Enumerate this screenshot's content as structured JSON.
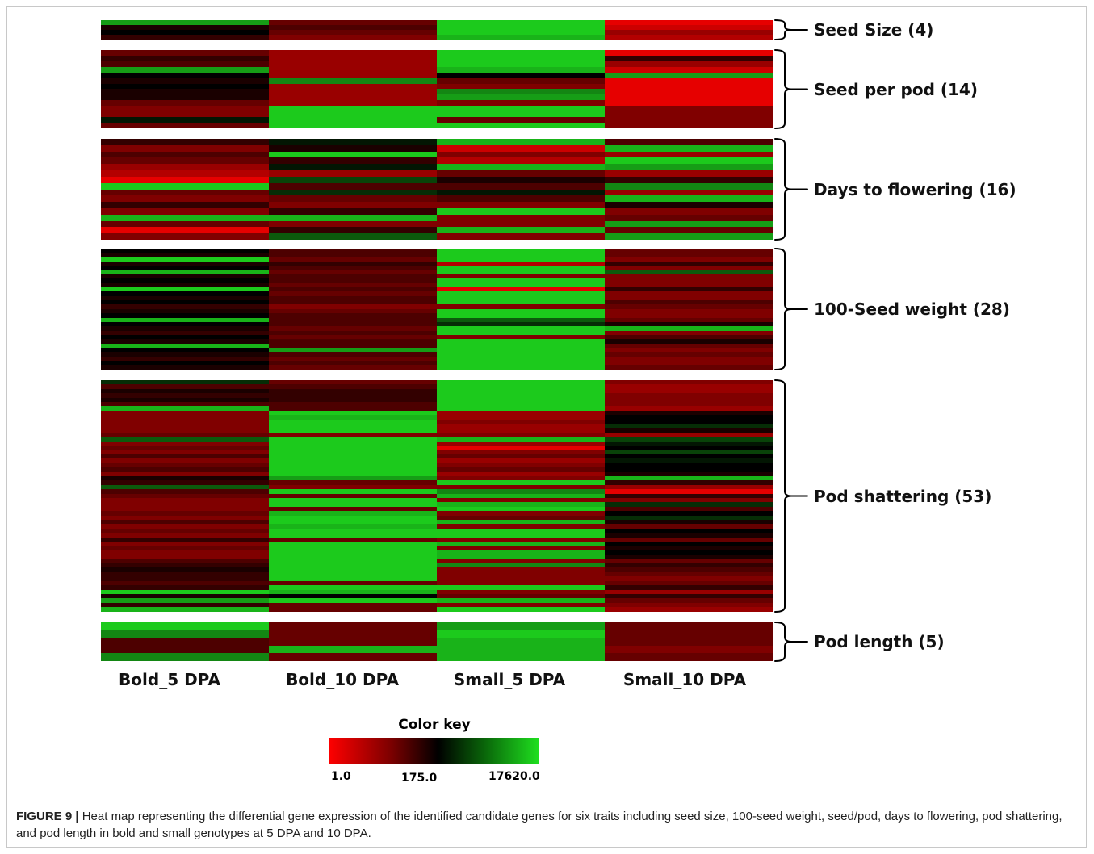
{
  "columns": [
    "Bold_5 DPA",
    "Bold_10 DPA",
    "Small_5 DPA",
    "Small_10 DPA"
  ],
  "color_scale": {
    "low": "#ff0000",
    "mid": "#000000",
    "high": "#1fe01f"
  },
  "color_key": {
    "title": "Color key",
    "min": "1.0",
    "mid": "175.0",
    "max": "17620.0"
  },
  "caption": {
    "figure": "FIGURE 9 |",
    "text": " Heat map representing the differential gene expression of the identified candidate genes for six traits including seed size, 100-seed weight, seed/pod, days to flowering, pod shattering, and pod length in bold and small genotypes at 5 DPA and 10 DPA."
  },
  "chart_data": {
    "type": "heatmap",
    "value_scale": "color from red (low) through black to green (high)",
    "columns": [
      "Bold_5 DPA",
      "Bold_10 DPA",
      "Small_5 DPA",
      "Small_10 DPA"
    ],
    "traits": [
      {
        "label": "Seed Size (4)",
        "rows": [
          [
            0.85,
            0.3,
            0.95,
            0.05
          ],
          [
            0.45,
            0.35,
            0.95,
            0.1
          ],
          [
            0.5,
            0.3,
            0.95,
            0.2
          ],
          [
            0.4,
            0.25,
            0.9,
            0.15
          ]
        ]
      },
      {
        "label": "Seed per pod (14)",
        "rows": [
          [
            0.3,
            0.2,
            0.95,
            0.05
          ],
          [
            0.4,
            0.2,
            0.95,
            0.4
          ],
          [
            0.35,
            0.2,
            0.95,
            0.2
          ],
          [
            0.85,
            0.2,
            0.9,
            0.1
          ],
          [
            0.5,
            0.2,
            0.5,
            0.85
          ],
          [
            0.45,
            0.8,
            0.3,
            0.05
          ],
          [
            0.5,
            0.2,
            0.25,
            0.05
          ],
          [
            0.45,
            0.2,
            0.8,
            0.05
          ],
          [
            0.45,
            0.2,
            0.85,
            0.05
          ],
          [
            0.3,
            0.2,
            0.25,
            0.05
          ],
          [
            0.25,
            0.95,
            0.95,
            0.25
          ],
          [
            0.25,
            0.95,
            0.95,
            0.25
          ],
          [
            0.55,
            0.95,
            0.3,
            0.25
          ],
          [
            0.3,
            0.95,
            0.95,
            0.25
          ]
        ]
      },
      {
        "label": "Days to flowering (16)",
        "rows": [
          [
            0.4,
            0.55,
            0.9,
            0.35
          ],
          [
            0.25,
            0.45,
            0.1,
            0.9
          ],
          [
            0.35,
            0.95,
            0.25,
            0.2
          ],
          [
            0.3,
            0.4,
            0.15,
            0.95
          ],
          [
            0.2,
            0.55,
            0.9,
            0.85
          ],
          [
            0.15,
            0.2,
            0.3,
            0.2
          ],
          [
            0.05,
            0.65,
            0.45,
            0.4
          ],
          [
            0.95,
            0.35,
            0.35,
            0.8
          ],
          [
            0.3,
            0.6,
            0.55,
            0.2
          ],
          [
            0.25,
            0.3,
            0.35,
            0.9
          ],
          [
            0.4,
            0.25,
            0.25,
            0.45
          ],
          [
            0.25,
            0.4,
            0.95,
            0.25
          ],
          [
            0.9,
            0.9,
            0.25,
            0.3
          ],
          [
            0.3,
            0.25,
            0.25,
            0.85
          ],
          [
            0.05,
            0.4,
            0.9,
            0.3
          ],
          [
            0.25,
            0.7,
            0.25,
            0.85
          ]
        ]
      },
      {
        "label": "100-Seed weight (28)",
        "rows": [
          [
            0.5,
            0.35,
            0.95,
            0.3
          ],
          [
            0.45,
            0.35,
            0.95,
            0.3
          ],
          [
            0.95,
            0.3,
            0.95,
            0.25
          ],
          [
            0.45,
            0.4,
            0.15,
            0.4
          ],
          [
            0.5,
            0.35,
            0.95,
            0.25
          ],
          [
            0.9,
            0.3,
            0.95,
            0.7
          ],
          [
            0.45,
            0.35,
            0.25,
            0.25
          ],
          [
            0.5,
            0.35,
            0.95,
            0.25
          ],
          [
            0.45,
            0.3,
            0.95,
            0.25
          ],
          [
            0.95,
            0.35,
            0.05,
            0.4
          ],
          [
            0.5,
            0.3,
            0.95,
            0.25
          ],
          [
            0.45,
            0.35,
            0.95,
            0.25
          ],
          [
            0.5,
            0.35,
            0.95,
            0.35
          ],
          [
            0.4,
            0.25,
            0.25,
            0.3
          ],
          [
            0.45,
            0.3,
            0.95,
            0.25
          ],
          [
            0.5,
            0.35,
            0.95,
            0.25
          ],
          [
            0.9,
            0.35,
            0.7,
            0.3
          ],
          [
            0.5,
            0.35,
            0.6,
            0.45
          ],
          [
            0.45,
            0.3,
            0.95,
            0.9
          ],
          [
            0.4,
            0.35,
            0.95,
            0.25
          ],
          [
            0.5,
            0.3,
            0.25,
            0.35
          ],
          [
            0.45,
            0.35,
            0.95,
            0.45
          ],
          [
            0.9,
            0.35,
            0.95,
            0.3
          ],
          [
            0.5,
            0.85,
            0.95,
            0.25
          ],
          [
            0.45,
            0.35,
            0.95,
            0.3
          ],
          [
            0.4,
            0.3,
            0.95,
            0.25
          ],
          [
            0.5,
            0.35,
            0.95,
            0.25
          ],
          [
            0.45,
            0.3,
            0.95,
            0.3
          ]
        ]
      },
      {
        "label": "Pod shattering (53)",
        "rows": [
          [
            0.6,
            0.3,
            0.95,
            0.25
          ],
          [
            0.35,
            0.35,
            0.95,
            0.2
          ],
          [
            0.45,
            0.4,
            0.95,
            0.2
          ],
          [
            0.4,
            0.4,
            0.95,
            0.25
          ],
          [
            0.45,
            0.4,
            0.95,
            0.25
          ],
          [
            0.35,
            0.35,
            0.95,
            0.25
          ],
          [
            0.9,
            0.35,
            0.95,
            0.2
          ],
          [
            0.25,
            0.95,
            0.2,
            0.45
          ],
          [
            0.25,
            0.9,
            0.2,
            0.5
          ],
          [
            0.25,
            0.95,
            0.25,
            0.5
          ],
          [
            0.25,
            0.95,
            0.2,
            0.6
          ],
          [
            0.25,
            0.95,
            0.2,
            0.45
          ],
          [
            0.3,
            0.25,
            0.25,
            0.2
          ],
          [
            0.7,
            0.95,
            0.9,
            0.65
          ],
          [
            0.25,
            0.95,
            0.2,
            0.55
          ],
          [
            0.3,
            0.95,
            0.05,
            0.5
          ],
          [
            0.25,
            0.95,
            0.25,
            0.65
          ],
          [
            0.35,
            0.95,
            0.3,
            0.5
          ],
          [
            0.25,
            0.95,
            0.2,
            0.55
          ],
          [
            0.3,
            0.95,
            0.25,
            0.5
          ],
          [
            0.35,
            0.95,
            0.3,
            0.5
          ],
          [
            0.25,
            0.95,
            0.2,
            0.45
          ],
          [
            0.45,
            0.85,
            0.25,
            0.9
          ],
          [
            0.4,
            0.3,
            0.95,
            0.4
          ],
          [
            0.7,
            0.25,
            0.25,
            0.2
          ],
          [
            0.35,
            0.95,
            0.8,
            0.05
          ],
          [
            0.3,
            0.3,
            0.9,
            0.4
          ],
          [
            0.25,
            0.95,
            0.25,
            0.25
          ],
          [
            0.25,
            0.95,
            0.9,
            0.6
          ],
          [
            0.25,
            0.3,
            0.95,
            0.35
          ],
          [
            0.3,
            0.9,
            0.25,
            0.5
          ],
          [
            0.25,
            0.95,
            0.3,
            0.6
          ],
          [
            0.35,
            0.95,
            0.9,
            0.45
          ],
          [
            0.25,
            0.9,
            0.25,
            0.3
          ],
          [
            0.3,
            0.95,
            0.95,
            0.5
          ],
          [
            0.25,
            0.95,
            0.95,
            0.45
          ],
          [
            0.4,
            0.3,
            0.25,
            0.3
          ],
          [
            0.25,
            0.95,
            0.9,
            0.5
          ],
          [
            0.3,
            0.95,
            0.25,
            0.45
          ],
          [
            0.25,
            0.95,
            0.9,
            0.5
          ],
          [
            0.25,
            0.95,
            0.9,
            0.45
          ],
          [
            0.35,
            0.95,
            0.25,
            0.3
          ],
          [
            0.4,
            0.95,
            0.8,
            0.4
          ],
          [
            0.45,
            0.95,
            0.25,
            0.35
          ],
          [
            0.4,
            0.95,
            0.25,
            0.3
          ],
          [
            0.4,
            0.95,
            0.25,
            0.25
          ],
          [
            0.35,
            0.3,
            0.25,
            0.3
          ],
          [
            0.4,
            0.95,
            0.95,
            0.4
          ],
          [
            0.95,
            0.9,
            0.25,
            0.2
          ],
          [
            0.45,
            0.5,
            0.3,
            0.4
          ],
          [
            0.85,
            0.95,
            0.9,
            0.3
          ],
          [
            0.4,
            0.3,
            0.25,
            0.25
          ],
          [
            0.9,
            0.3,
            0.95,
            0.2
          ]
        ]
      },
      {
        "label": "Pod length (5)",
        "rows": [
          [
            0.95,
            0.3,
            0.85,
            0.3
          ],
          [
            0.8,
            0.3,
            0.95,
            0.3
          ],
          [
            0.35,
            0.3,
            0.9,
            0.3
          ],
          [
            0.35,
            0.9,
            0.9,
            0.25
          ],
          [
            0.8,
            0.3,
            0.9,
            0.3
          ]
        ]
      }
    ]
  }
}
